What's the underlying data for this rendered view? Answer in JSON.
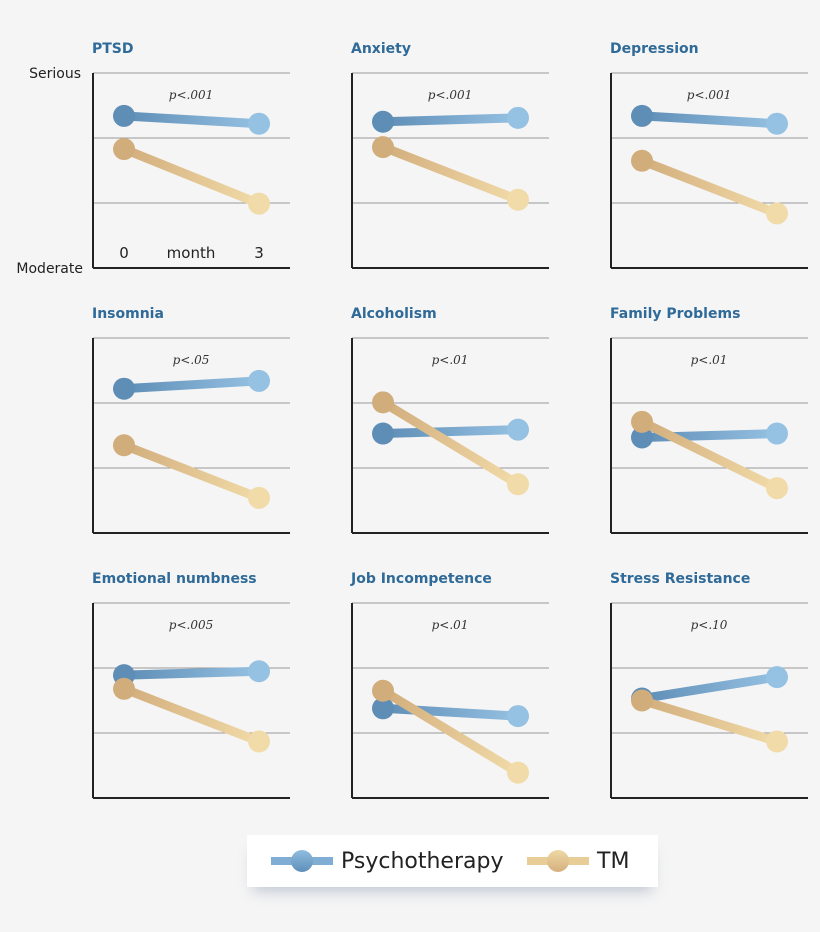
{
  "chart_data": {
    "type": "line",
    "y_axis_labels": {
      "top": "Serious",
      "bottom": "Moderate"
    },
    "x_axis_label": "month",
    "x": [
      0,
      3
    ],
    "x_tick_labels": [
      "0",
      "3"
    ],
    "ylim": [
      0,
      1
    ],
    "grid": true,
    "legend_placement": "bottom-center",
    "series_names": [
      "Psychotherapy",
      "TM"
    ],
    "colors": {
      "Psychotherapy": [
        "#5e8db6",
        "#95c1e2"
      ],
      "TM": [
        "#d2ad7c",
        "#f1dba8"
      ]
    },
    "panels": [
      {
        "title": "PTSD",
        "p_value": "p<.001",
        "Psychotherapy": [
          0.78,
          0.74
        ],
        "TM": [
          0.61,
          0.33
        ]
      },
      {
        "title": "Anxiety",
        "p_value": "p<.001",
        "Psychotherapy": [
          0.75,
          0.77
        ],
        "TM": [
          0.62,
          0.35
        ]
      },
      {
        "title": "Depression",
        "p_value": "p<.001",
        "Psychotherapy": [
          0.78,
          0.74
        ],
        "TM": [
          0.55,
          0.28
        ]
      },
      {
        "title": "Insomnia",
        "p_value": "p<.05",
        "Psychotherapy": [
          0.74,
          0.78
        ],
        "TM": [
          0.45,
          0.18
        ]
      },
      {
        "title": "Alcoholism",
        "p_value": "p<.01",
        "Psychotherapy": [
          0.51,
          0.53
        ],
        "TM": [
          0.67,
          0.25
        ]
      },
      {
        "title": "Family Problems",
        "p_value": "p<.01",
        "Psychotherapy": [
          0.49,
          0.51
        ],
        "TM": [
          0.57,
          0.23
        ]
      },
      {
        "title": "Emotional numbness",
        "p_value": "p<.005",
        "Psychotherapy": [
          0.63,
          0.65
        ],
        "TM": [
          0.56,
          0.29
        ]
      },
      {
        "title": "Job Incompetence",
        "p_value": "p<.01",
        "Psychotherapy": [
          0.46,
          0.42
        ],
        "TM": [
          0.55,
          0.13
        ]
      },
      {
        "title": "Stress Resistance",
        "p_value": "p<.10",
        "Psychotherapy": [
          0.51,
          0.62
        ],
        "TM": [
          0.5,
          0.29
        ]
      }
    ]
  },
  "legend": {
    "items": [
      "Psychotherapy",
      "TM"
    ]
  }
}
